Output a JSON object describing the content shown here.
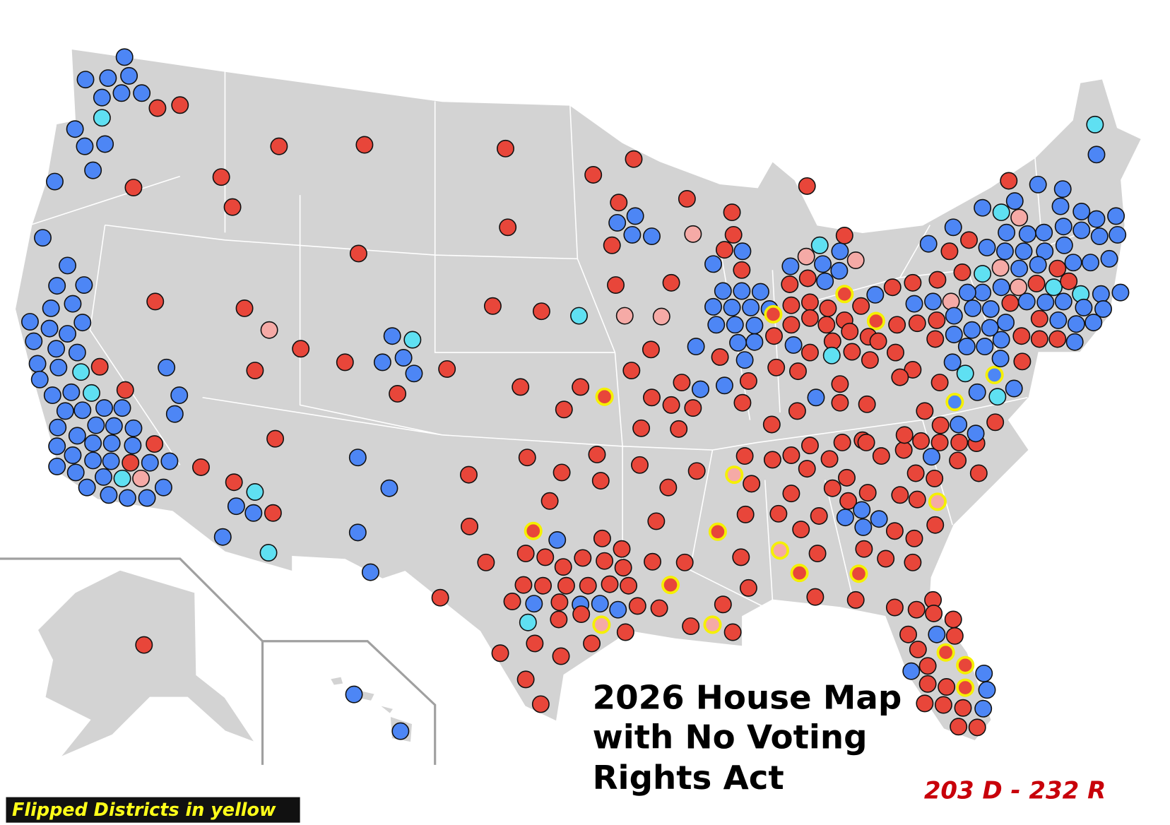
{
  "map": {
    "title": [
      "2026 House Map",
      "with No Voting",
      "Rights Act"
    ],
    "seat_count": "203 D - 232 R",
    "legend_note": "Flipped Districts in yellow"
  }
}
